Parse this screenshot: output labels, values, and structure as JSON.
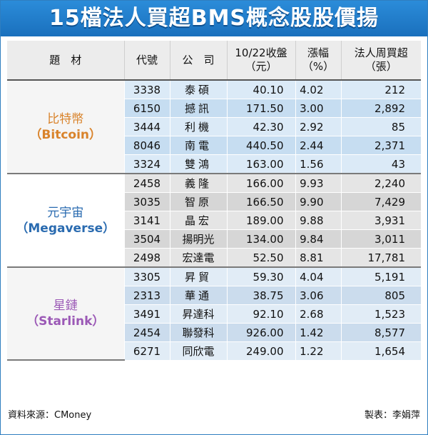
{
  "title": "15檔法人買超BMS概念股股價揚",
  "headers": {
    "topic": "題　材",
    "code": "代號",
    "company": "公　司",
    "close_line1": "10/22收盤",
    "close_line2": "（元）",
    "change_line1": "漲幅",
    "change_line2": "（%）",
    "buy_line1": "法人周買超",
    "buy_line2": "（張）"
  },
  "groups": [
    {
      "topic_zh": "比特幣",
      "topic_en": "（Bitcoin）",
      "rows": [
        {
          "code": "3338",
          "name": "泰碩",
          "close": "40.10",
          "change": "4.02",
          "buy": "212"
        },
        {
          "code": "6150",
          "name": "撼訊",
          "close": "171.50",
          "change": "3.00",
          "buy": "2,892"
        },
        {
          "code": "3444",
          "name": "利機",
          "close": "42.30",
          "change": "2.92",
          "buy": "85"
        },
        {
          "code": "8046",
          "name": "南電",
          "close": "440.50",
          "change": "2.44",
          "buy": "2,371"
        },
        {
          "code": "3324",
          "name": "雙鴻",
          "close": "163.00",
          "change": "1.56",
          "buy": "43"
        }
      ]
    },
    {
      "topic_zh": "元宇宙",
      "topic_en": "（Megaverse）",
      "rows": [
        {
          "code": "2458",
          "name": "義隆",
          "close": "166.00",
          "change": "9.93",
          "buy": "2,240"
        },
        {
          "code": "3035",
          "name": "智原",
          "close": "166.50",
          "change": "9.90",
          "buy": "7,429"
        },
        {
          "code": "3141",
          "name": "晶宏",
          "close": "189.00",
          "change": "9.88",
          "buy": "3,931"
        },
        {
          "code": "3504",
          "name": "揚明光",
          "close": "134.00",
          "change": "9.84",
          "buy": "3,011"
        },
        {
          "code": "2498",
          "name": "宏達電",
          "close": "52.50",
          "change": "8.81",
          "buy": "17,781"
        }
      ]
    },
    {
      "topic_zh": "星鏈",
      "topic_en": "（Starlink）",
      "rows": [
        {
          "code": "3305",
          "name": "昇貿",
          "close": "59.30",
          "change": "4.04",
          "buy": "5,191"
        },
        {
          "code": "2313",
          "name": "華通",
          "close": "38.75",
          "change": "3.06",
          "buy": "805"
        },
        {
          "code": "3491",
          "name": "昇達科",
          "close": "92.10",
          "change": "2.68",
          "buy": "1,523"
        },
        {
          "code": "2454",
          "name": "聯發科",
          "close": "926.00",
          "change": "1.42",
          "buy": "8,577"
        },
        {
          "code": "6271",
          "name": "同欣電",
          "close": "249.00",
          "change": "1.22",
          "buy": "1,654"
        }
      ]
    }
  ],
  "footer": {
    "source": "資料來源：CMoney",
    "author": "製表：李娟萍"
  }
}
